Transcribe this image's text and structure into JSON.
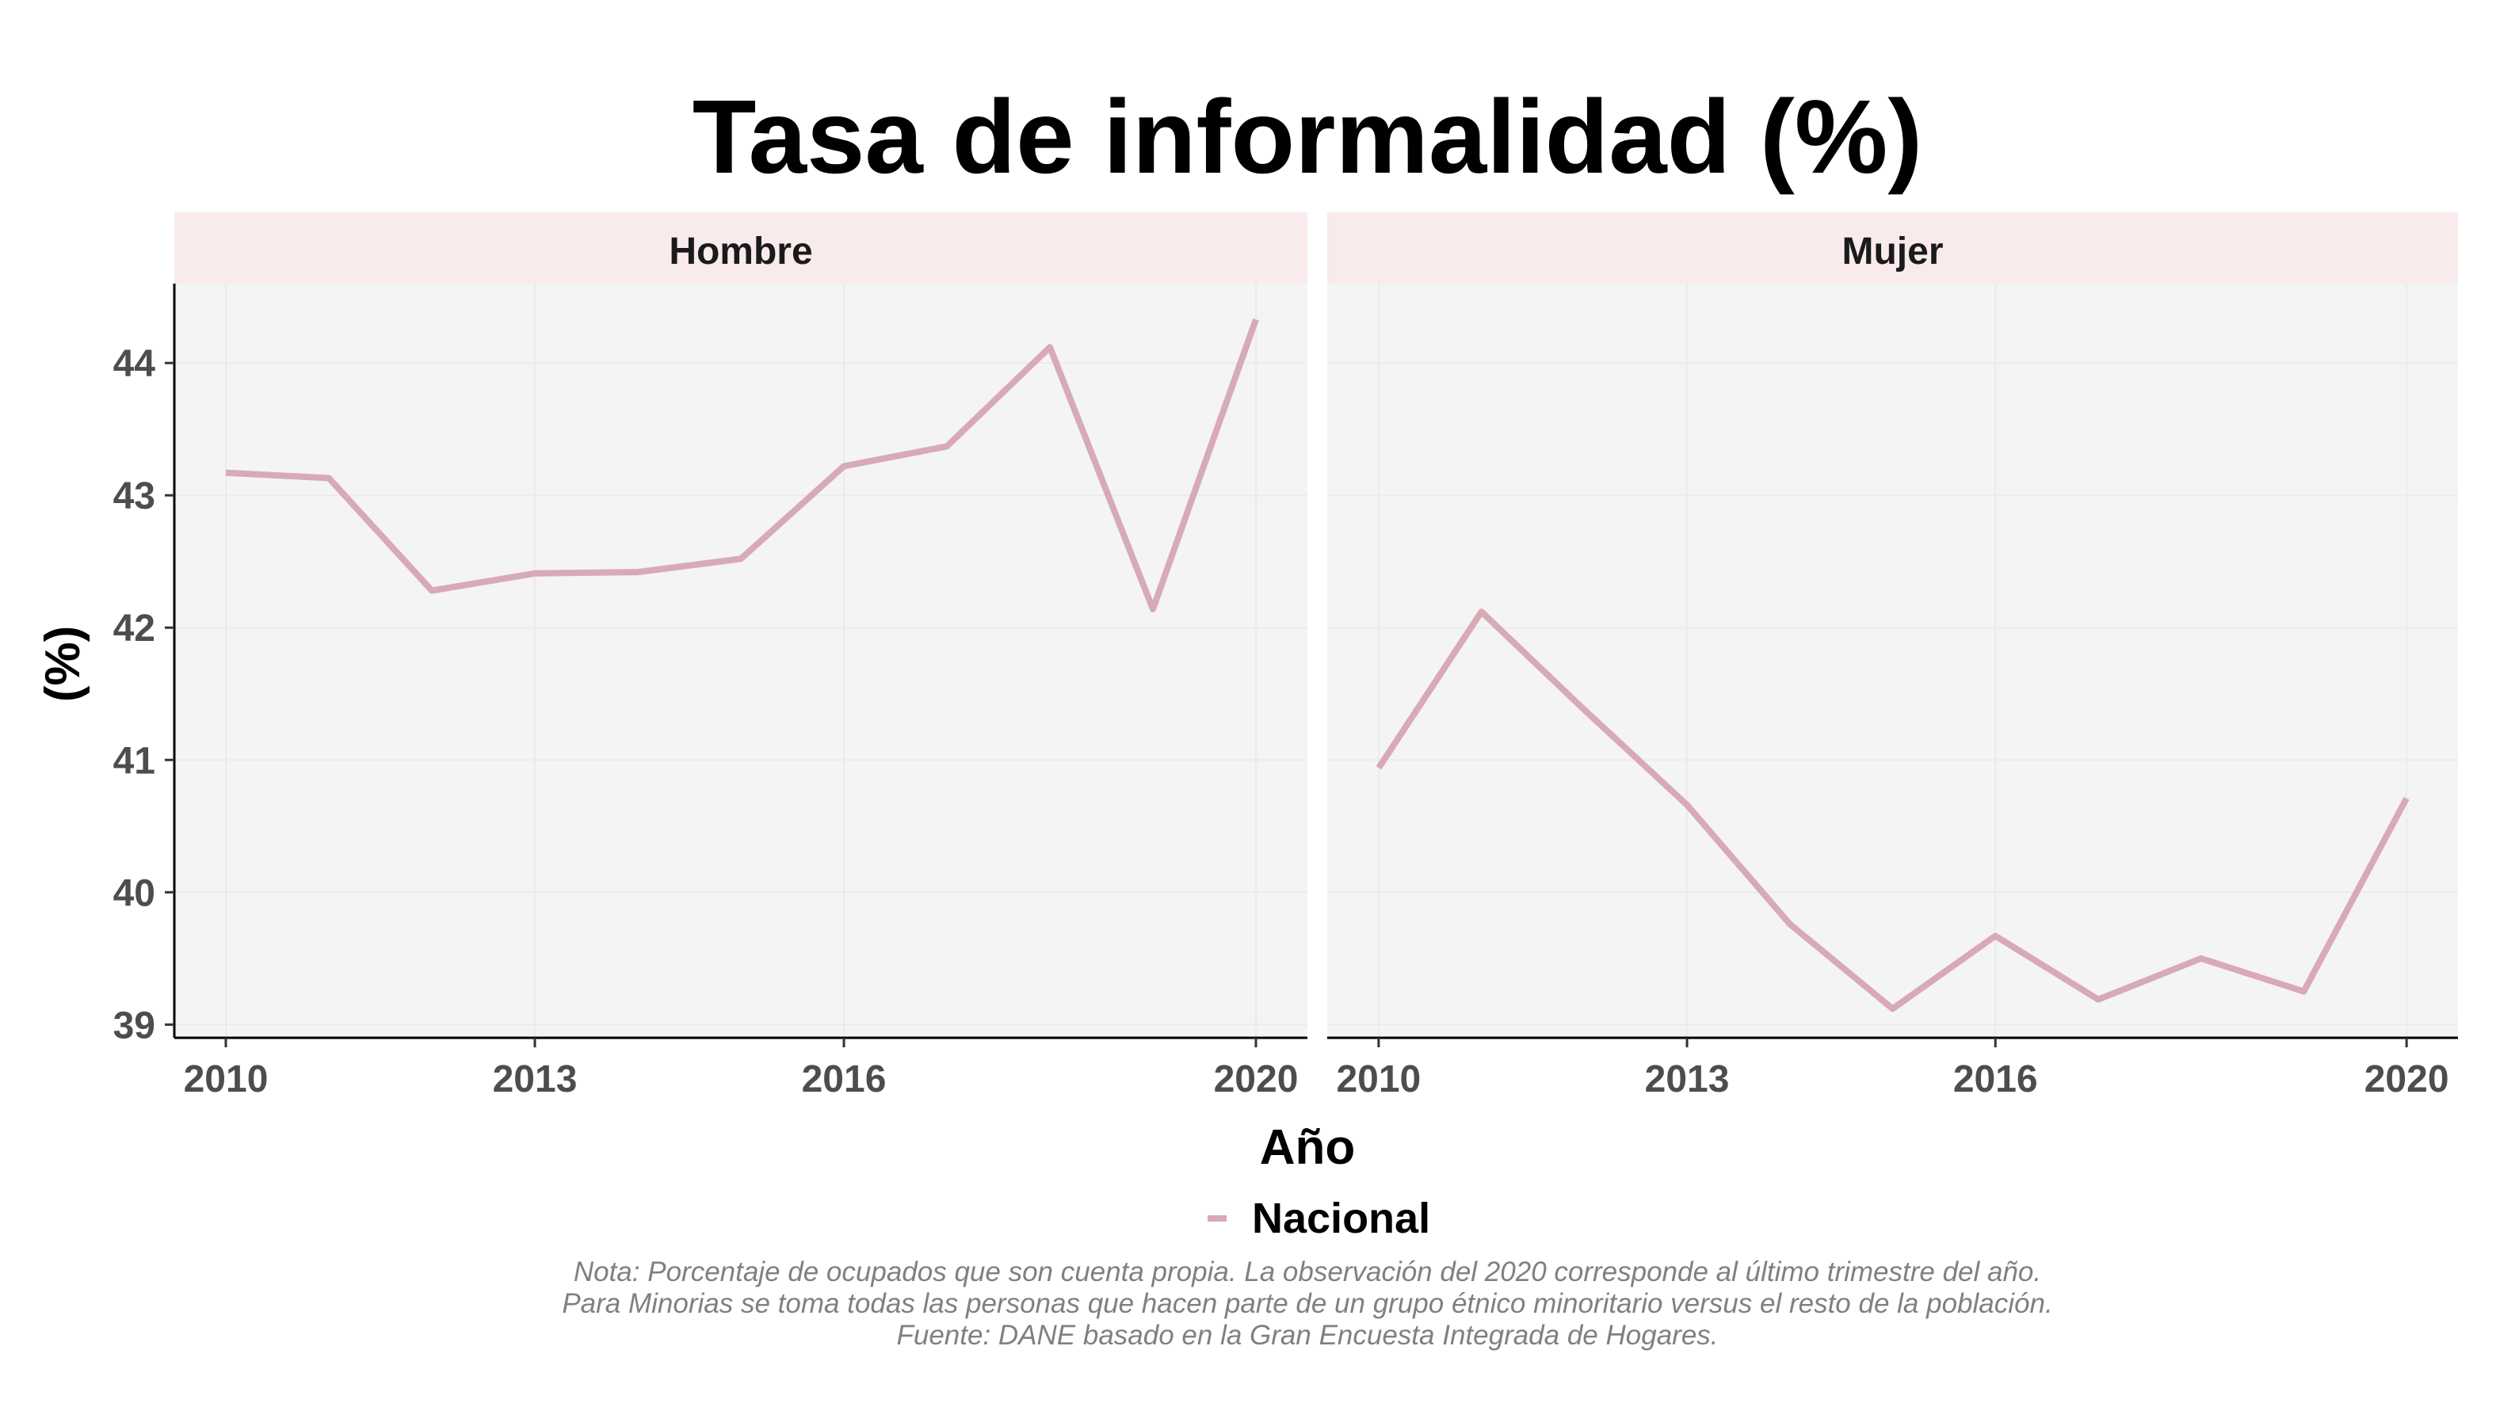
{
  "chart_data": {
    "type": "line",
    "title": "Tasa de informalidad (%)",
    "xlabel": "Año",
    "ylabel": "(%)",
    "xlim": [
      2009.5,
      2020.5
    ],
    "ylim": [
      38.9,
      44.6
    ],
    "x_ticks": [
      2010,
      2013,
      2016,
      2020
    ],
    "y_ticks": [
      39,
      40,
      41,
      42,
      43,
      44
    ],
    "grid": true,
    "legend_position": "bottom",
    "legend": [
      {
        "label": "Nacional",
        "color": "#d8aab5"
      }
    ],
    "x": [
      2010,
      2011,
      2012,
      2013,
      2014,
      2015,
      2016,
      2017,
      2018,
      2019,
      2020
    ],
    "panels": [
      {
        "name": "Hombre",
        "series": [
          {
            "name": "Nacional",
            "values": [
              43.17,
              43.13,
              42.28,
              42.41,
              42.42,
              42.52,
              43.22,
              43.37,
              44.12,
              42.14,
              44.33
            ]
          }
        ]
      },
      {
        "name": "Mujer",
        "series": [
          {
            "name": "Nacional",
            "values": [
              40.94,
              42.12,
              41.38,
              40.66,
              39.76,
              39.12,
              39.67,
              39.19,
              39.5,
              39.25,
              40.71
            ]
          }
        ]
      }
    ],
    "caption": "Nota: Porcentaje de ocupados que son cuenta propia. La observación del 2020 corresponde al último trimestre del año. Para Minorias se toma todas las personas que hacen parte de un grupo étnico minoritario versus el resto de la población. Fuente: DANE basado en la Gran Encuesta Integrada de Hogares."
  },
  "colors": {
    "line": "#d8aab5",
    "panel_bg": "#f4f4f4",
    "strip_bg": "#f9eaec",
    "grid": "#ebebeb",
    "axis": "#000000"
  }
}
